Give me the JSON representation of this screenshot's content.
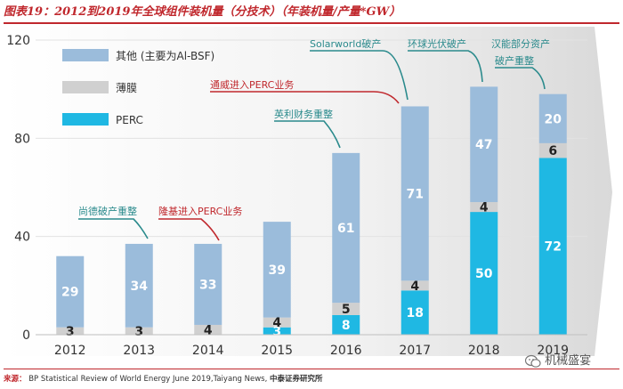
{
  "title": "图表19：2012到2019年全球组件装机量（分技术）（年装机量/产量*GW）",
  "source": {
    "label": "来源：",
    "text": "BP Statistical Review of World Energy June 2019,Taiyang News,",
    "institution": "中泰证券研究所"
  },
  "watermark": "机械盛宴",
  "colors": {
    "other": "#9bbcdb",
    "thin_film": "#d0d0d0",
    "perc": "#1fb8e3",
    "annot_red": "#c0282d",
    "annot_teal": "#2a8a8c",
    "title_red": "#c0282d"
  },
  "chart_data": {
    "type": "bar",
    "stacked": true,
    "categories": [
      "2012",
      "2013",
      "2014",
      "2015",
      "2016",
      "2017",
      "2018",
      "2019"
    ],
    "series": [
      {
        "name": "PERC",
        "values": [
          0,
          0,
          0,
          3,
          8,
          18,
          50,
          72
        ],
        "labels": [
          "",
          "",
          "",
          "3",
          "8",
          "18",
          "50",
          "72"
        ]
      },
      {
        "name": "薄膜",
        "values": [
          3,
          3,
          4,
          4,
          5,
          4,
          4,
          6
        ],
        "labels": [
          "3",
          "3",
          "4",
          "4",
          "5",
          "4",
          "4",
          "6"
        ]
      },
      {
        "name": "其他 (主要为Al-BSF)",
        "values": [
          29,
          34,
          33,
          39,
          61,
          71,
          47,
          20
        ],
        "labels": [
          "29",
          "34",
          "33",
          "39",
          "61",
          "71",
          "47",
          "20"
        ]
      }
    ],
    "legend": [
      "其他 (主要为Al-BSF)",
      "薄膜",
      "PERC"
    ],
    "legend_placement": "top-left",
    "ylim": [
      0,
      120
    ],
    "yticks": [
      "0",
      "40",
      "80",
      "120"
    ],
    "xlabel": "",
    "ylabel": "",
    "annotations": [
      {
        "text": "尚德破产重整",
        "year": "2013",
        "color": "teal"
      },
      {
        "text": "隆基进入PERC业务",
        "year": "2014",
        "color": "red"
      },
      {
        "text": "英利财务重整",
        "year": "2016",
        "color": "teal"
      },
      {
        "text": "通威进入PERC业务",
        "year": "2017",
        "color": "red"
      },
      {
        "text": "Solarworld破产",
        "year": "2017",
        "color": "teal"
      },
      {
        "text": "环球光伏破产",
        "year": "2018",
        "color": "teal"
      },
      {
        "text": "汉能部分资产",
        "year": "2019",
        "color": "teal"
      },
      {
        "text": "破产重整",
        "year": "2019",
        "color": "teal"
      }
    ]
  }
}
